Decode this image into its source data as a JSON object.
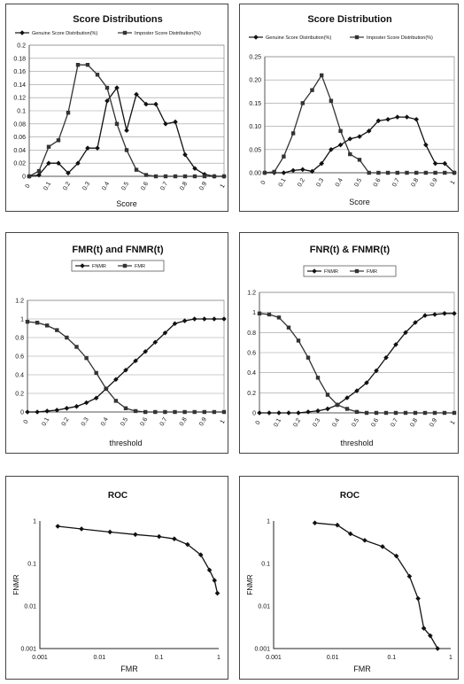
{
  "chart_data": [
    {
      "type": "line",
      "title": "Score Distributions",
      "xlabel": "Score",
      "ylabel": "",
      "xlim": [
        0,
        1
      ],
      "ylim": [
        0,
        0.2
      ],
      "x_ticks": [
        0,
        0.1,
        0.2,
        0.3,
        0.4,
        0.5,
        0.6,
        0.7,
        0.8,
        0.9,
        1
      ],
      "x_tick_labels": [
        "0",
        "0.1",
        "0.2",
        "0.3",
        "0.4",
        "0.5",
        "0.6",
        "0.7",
        "0.8",
        "0.9",
        "1"
      ],
      "y_ticks": [
        0,
        0.02,
        0.04,
        0.06,
        0.08,
        0.1,
        0.12,
        0.14,
        0.16,
        0.18,
        0.2
      ],
      "y_tick_labels": [
        "0",
        "0.02",
        "0.04",
        "0.06",
        "0.08",
        "0.1",
        "0.12",
        "0.14",
        "0.16",
        "0.18",
        "0.2"
      ],
      "grid": true,
      "legend_position": "top",
      "series": [
        {
          "name": "Genuine Score Distribution(%)",
          "marker": "diamond",
          "color": "#111111",
          "x": [
            0,
            0.05,
            0.1,
            0.15,
            0.2,
            0.25,
            0.3,
            0.35,
            0.4,
            0.45,
            0.5,
            0.55,
            0.6,
            0.65,
            0.7,
            0.75,
            0.8,
            0.85,
            0.9,
            0.95,
            1.0
          ],
          "values": [
            0,
            0.002,
            0.02,
            0.02,
            0.005,
            0.02,
            0.043,
            0.043,
            0.115,
            0.135,
            0.07,
            0.125,
            0.11,
            0.11,
            0.08,
            0.083,
            0.033,
            0.012,
            0.003,
            0,
            0
          ]
        },
        {
          "name": "Imposter Score Distribution(%)",
          "marker": "square",
          "color": "#333333",
          "x": [
            0,
            0.05,
            0.1,
            0.15,
            0.2,
            0.25,
            0.3,
            0.35,
            0.4,
            0.45,
            0.5,
            0.55,
            0.6,
            0.65,
            0.7,
            0.75,
            0.8,
            0.85,
            0.9,
            0.95,
            1.0
          ],
          "values": [
            0,
            0.008,
            0.045,
            0.055,
            0.097,
            0.17,
            0.17,
            0.155,
            0.135,
            0.08,
            0.04,
            0.01,
            0.002,
            0,
            0,
            0,
            0,
            0,
            0,
            0,
            0
          ]
        }
      ]
    },
    {
      "type": "line",
      "title": "Score Distribution",
      "xlabel": "Score",
      "ylabel": "",
      "xlim": [
        0,
        1
      ],
      "ylim": [
        0,
        0.25
      ],
      "x_ticks": [
        0,
        0.1,
        0.2,
        0.3,
        0.4,
        0.5,
        0.6,
        0.7,
        0.8,
        0.9,
        1
      ],
      "x_tick_labels": [
        "0",
        "0.1",
        "0.2",
        "0.3",
        "0.4",
        "0.5",
        "0.6",
        "0.7",
        "0.8",
        "0.9",
        "1"
      ],
      "y_ticks": [
        0,
        0.05,
        0.1,
        0.15,
        0.2,
        0.25
      ],
      "y_tick_labels": [
        "0.00",
        "0.05",
        "0.10",
        "0.15",
        "0.20",
        "0.25"
      ],
      "grid": true,
      "legend_position": "top",
      "series": [
        {
          "name": "Genuine Score Distribution(%)",
          "marker": "diamond",
          "color": "#111111",
          "x": [
            0,
            0.05,
            0.1,
            0.15,
            0.2,
            0.25,
            0.3,
            0.35,
            0.4,
            0.45,
            0.5,
            0.55,
            0.6,
            0.65,
            0.7,
            0.75,
            0.8,
            0.85,
            0.9,
            0.95,
            1.0
          ],
          "values": [
            0,
            0,
            0,
            0.005,
            0.007,
            0.003,
            0.02,
            0.05,
            0.06,
            0.073,
            0.078,
            0.09,
            0.112,
            0.115,
            0.12,
            0.12,
            0.115,
            0.06,
            0.02,
            0.02,
            0
          ]
        },
        {
          "name": "Imposter Score Distribution(%)",
          "marker": "square",
          "color": "#333333",
          "x": [
            0,
            0.05,
            0.1,
            0.15,
            0.2,
            0.25,
            0.3,
            0.35,
            0.4,
            0.45,
            0.5,
            0.55,
            0.6,
            0.65,
            0.7,
            0.75,
            0.8,
            0.85,
            0.9,
            0.95,
            1.0
          ],
          "values": [
            0,
            0.002,
            0.035,
            0.085,
            0.15,
            0.178,
            0.21,
            0.155,
            0.09,
            0.04,
            0.028,
            0,
            0,
            0,
            0,
            0,
            0,
            0,
            0,
            0,
            0
          ]
        }
      ]
    },
    {
      "type": "line",
      "title": "FMR(t) and FNMR(t)",
      "xlabel": "threshold",
      "ylabel": "",
      "xlim": [
        0,
        1
      ],
      "ylim": [
        0,
        1.2
      ],
      "x_ticks": [
        0,
        0.1,
        0.2,
        0.3,
        0.4,
        0.5,
        0.6,
        0.7,
        0.8,
        0.9,
        1
      ],
      "x_tick_labels": [
        "0",
        "0.1",
        "0.2",
        "0.3",
        "0.4",
        "0.5",
        "0.6",
        "0.7",
        "0.8",
        "0.9",
        "1"
      ],
      "y_ticks": [
        0,
        0.2,
        0.4,
        0.6,
        0.8,
        1,
        1.2
      ],
      "y_tick_labels": [
        "0",
        "0.2",
        "0.4",
        "0.6",
        "0.8",
        "1",
        "1.2"
      ],
      "grid": true,
      "legend_position": "top",
      "series": [
        {
          "name": "FNMR",
          "marker": "diamond",
          "color": "#111111",
          "x": [
            0,
            0.05,
            0.1,
            0.15,
            0.2,
            0.25,
            0.3,
            0.35,
            0.4,
            0.45,
            0.5,
            0.55,
            0.6,
            0.65,
            0.7,
            0.75,
            0.8,
            0.85,
            0.9,
            0.95,
            1.0
          ],
          "values": [
            0,
            0,
            0.01,
            0.02,
            0.04,
            0.06,
            0.1,
            0.15,
            0.25,
            0.35,
            0.45,
            0.55,
            0.65,
            0.75,
            0.85,
            0.95,
            0.98,
            1,
            1,
            1,
            1
          ]
        },
        {
          "name": "FMR",
          "marker": "square",
          "color": "#333333",
          "x": [
            0,
            0.05,
            0.1,
            0.15,
            0.2,
            0.25,
            0.3,
            0.35,
            0.4,
            0.45,
            0.5,
            0.55,
            0.6,
            0.65,
            0.7,
            0.75,
            0.8,
            0.85,
            0.9,
            0.95,
            1.0
          ],
          "values": [
            0.97,
            0.96,
            0.93,
            0.88,
            0.8,
            0.7,
            0.58,
            0.42,
            0.25,
            0.12,
            0.04,
            0.01,
            0,
            0,
            0,
            0,
            0,
            0,
            0,
            0,
            0
          ]
        }
      ]
    },
    {
      "type": "line",
      "title": "FNR(t) & FNMR(t)",
      "xlabel": "threshold",
      "ylabel": "",
      "xlim": [
        0,
        1
      ],
      "ylim": [
        0,
        1.2
      ],
      "x_ticks": [
        0,
        0.1,
        0.2,
        0.3,
        0.4,
        0.5,
        0.6,
        0.7,
        0.8,
        0.9,
        1
      ],
      "x_tick_labels": [
        "0",
        "0.1",
        "0.2",
        "0.3",
        "0.4",
        "0.5",
        "0.6",
        "0.7",
        "0.8",
        "0.9",
        "1"
      ],
      "y_ticks": [
        0,
        0.2,
        0.4,
        0.6,
        0.8,
        1,
        1.2
      ],
      "y_tick_labels": [
        "0",
        "0.2",
        "0.4",
        "0.6",
        "0.8",
        "1",
        "1.2"
      ],
      "grid": true,
      "legend_position": "top",
      "series": [
        {
          "name": "FNMR",
          "marker": "diamond",
          "color": "#111111",
          "x": [
            0,
            0.05,
            0.1,
            0.15,
            0.2,
            0.25,
            0.3,
            0.35,
            0.4,
            0.45,
            0.5,
            0.55,
            0.6,
            0.65,
            0.7,
            0.75,
            0.8,
            0.85,
            0.9,
            0.95,
            1.0
          ],
          "values": [
            0,
            0,
            0,
            0,
            0,
            0.01,
            0.02,
            0.04,
            0.08,
            0.15,
            0.22,
            0.3,
            0.42,
            0.55,
            0.68,
            0.8,
            0.9,
            0.97,
            0.98,
            0.99,
            0.99
          ]
        },
        {
          "name": "FMR",
          "marker": "square",
          "color": "#333333",
          "x": [
            0,
            0.05,
            0.1,
            0.15,
            0.2,
            0.25,
            0.3,
            0.35,
            0.4,
            0.45,
            0.5,
            0.55,
            0.6,
            0.65,
            0.7,
            0.75,
            0.8,
            0.85,
            0.9,
            0.95,
            1.0
          ],
          "values": [
            0.99,
            0.98,
            0.95,
            0.85,
            0.72,
            0.55,
            0.35,
            0.18,
            0.08,
            0.04,
            0.01,
            0,
            0,
            0,
            0,
            0,
            0,
            0,
            0,
            0,
            0
          ]
        }
      ]
    },
    {
      "type": "line",
      "title": "ROC",
      "xlabel": "FMR",
      "ylabel": "FNMR",
      "x_scale": "log",
      "y_scale": "log",
      "xlim": [
        0.001,
        1
      ],
      "ylim": [
        0.001,
        1
      ],
      "x_ticks": [
        0.001,
        0.01,
        0.1,
        1
      ],
      "x_tick_labels": [
        "0.001",
        "0.01",
        "0.1",
        "1"
      ],
      "y_ticks": [
        0.001,
        0.01,
        0.1,
        1
      ],
      "y_tick_labels": [
        "0.001",
        "0.01",
        "0.1",
        "1"
      ],
      "grid": false,
      "series": [
        {
          "name": "",
          "marker": "diamond",
          "color": "#111111",
          "x": [
            0.002,
            0.005,
            0.015,
            0.04,
            0.1,
            0.18,
            0.3,
            0.5,
            0.7,
            0.85,
            0.95
          ],
          "values": [
            0.75,
            0.65,
            0.55,
            0.48,
            0.43,
            0.38,
            0.28,
            0.16,
            0.07,
            0.04,
            0.02
          ]
        }
      ]
    },
    {
      "type": "line",
      "title": "ROC",
      "xlabel": "FMR",
      "ylabel": "FNMR",
      "x_scale": "log",
      "y_scale": "log",
      "xlim": [
        0.001,
        1
      ],
      "ylim": [
        0.001,
        1
      ],
      "x_ticks": [
        0.001,
        0.01,
        0.1,
        1
      ],
      "x_tick_labels": [
        "0.001",
        "0.01",
        "0.1",
        "1"
      ],
      "y_ticks": [
        0.001,
        0.01,
        0.1,
        1
      ],
      "y_tick_labels": [
        "0.001",
        "0.01",
        "0.1",
        "1"
      ],
      "grid": false,
      "series": [
        {
          "name": "",
          "marker": "diamond",
          "color": "#111111",
          "x": [
            0.005,
            0.012,
            0.02,
            0.035,
            0.07,
            0.12,
            0.2,
            0.28,
            0.35,
            0.45,
            0.6
          ],
          "values": [
            0.9,
            0.8,
            0.5,
            0.35,
            0.25,
            0.15,
            0.05,
            0.015,
            0.003,
            0.002,
            0.001
          ]
        }
      ]
    }
  ]
}
